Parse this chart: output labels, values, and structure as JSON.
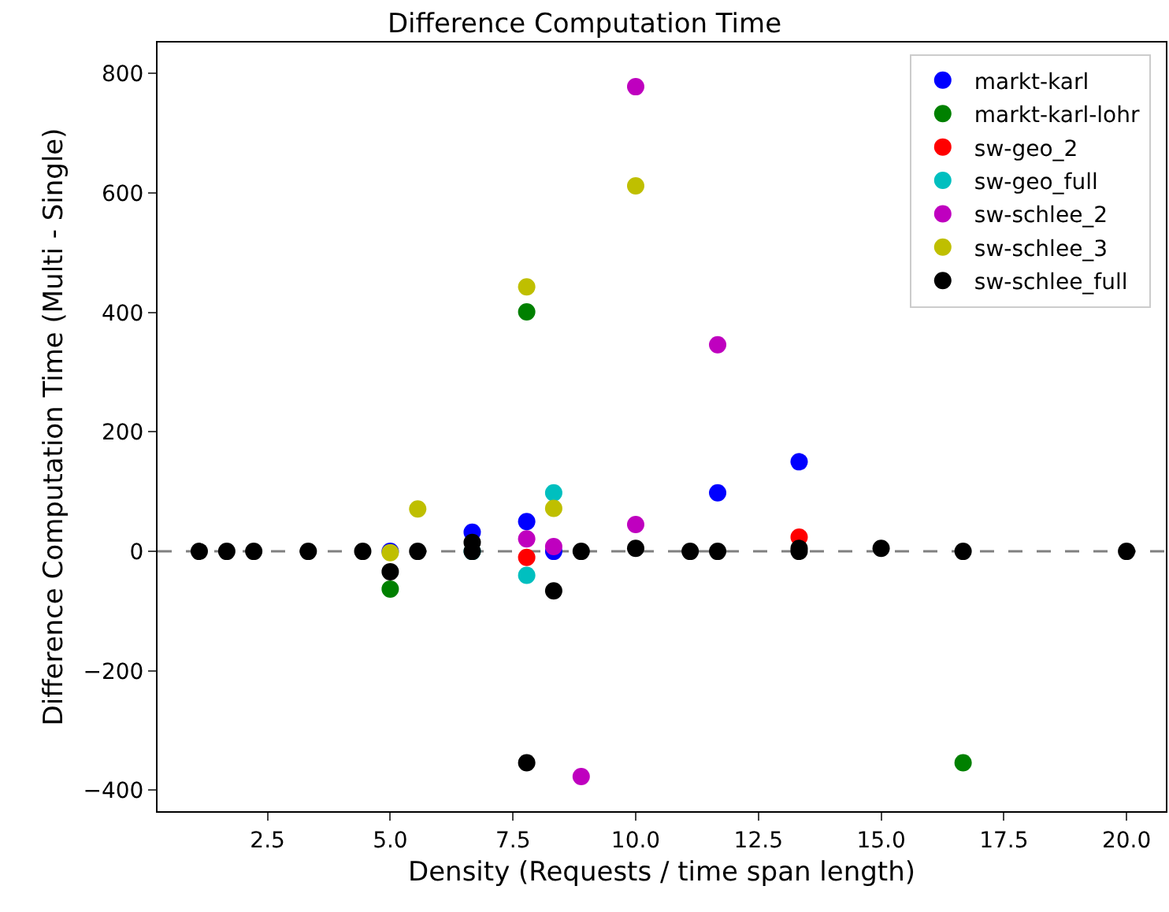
{
  "chart_data": {
    "type": "scatter",
    "title": "Difference Computation Time",
    "xlabel": "Density (Requests / time span length)",
    "ylabel": "Difference Computation Time (Multi - Single)",
    "xlim": [
      0.26,
      20.8
    ],
    "xticks": [
      {
        "value": 2.5,
        "label": "2.5"
      },
      {
        "value": 5,
        "label": "5.0"
      },
      {
        "value": 7.5,
        "label": "7.5"
      },
      {
        "value": 10,
        "label": "10.0"
      },
      {
        "value": 12.5,
        "label": "12.5"
      },
      {
        "value": 15,
        "label": "15.0"
      },
      {
        "value": 17.5,
        "label": "17.5"
      },
      {
        "value": 20,
        "label": "20.0"
      }
    ],
    "ylim": [
      -435,
      852
    ],
    "yticks": [
      {
        "value": -400,
        "label": "−400"
      },
      {
        "value": -200,
        "label": "−200"
      },
      0,
      200,
      400,
      600,
      800
    ],
    "grid": false,
    "legend": "top right",
    "marker": "circle",
    "ref_lines": [
      {
        "axis": "y",
        "value": 0,
        "color": "#808080",
        "line_style": "dashed"
      }
    ],
    "series": [
      {
        "name": "markt-karl",
        "color": "#0000ff",
        "x": [
          5,
          6.67,
          7.78,
          8.33,
          11.67,
          13.33
        ],
        "values": [
          0,
          32,
          50,
          0,
          98,
          150
        ]
      },
      {
        "name": "markt-karl-lohr",
        "color": "#008000",
        "x": [
          5,
          7.78,
          16.67
        ],
        "values": [
          -63,
          401,
          -354
        ]
      },
      {
        "name": "sw-geo_2",
        "color": "#ff0000",
        "x": [
          7.78,
          13.33
        ],
        "values": [
          -10,
          24
        ]
      },
      {
        "name": "sw-geo_full",
        "color": "#00bfbf",
        "x": [
          6.67,
          7.78,
          8.33
        ],
        "values": [
          0,
          -40,
          98
        ]
      },
      {
        "name": "sw-schlee_2",
        "color": "#bf00bf",
        "x": [
          7.78,
          8.33,
          8.89,
          10,
          10,
          11.67
        ],
        "values": [
          21,
          8,
          -377,
          45,
          778,
          346
        ]
      },
      {
        "name": "sw-schlee_3",
        "color": "#bfbf00",
        "x": [
          5,
          5.56,
          7.78,
          8.33,
          10
        ],
        "values": [
          -2,
          71,
          443,
          72,
          612
        ]
      },
      {
        "name": "sw-schlee_full",
        "color": "#000000",
        "x": [
          1.11,
          1.67,
          2.22,
          3.33,
          4.44,
          5,
          5.56,
          6.67,
          6.67,
          7.78,
          8.33,
          8.89,
          10,
          11.11,
          11.67,
          13.33,
          13.33,
          15,
          16.67,
          20
        ],
        "values": [
          0,
          0,
          0,
          0,
          0,
          -34,
          0,
          0,
          15,
          -354,
          -66,
          0,
          5,
          0,
          0,
          0,
          5,
          5,
          0,
          0
        ]
      }
    ]
  }
}
